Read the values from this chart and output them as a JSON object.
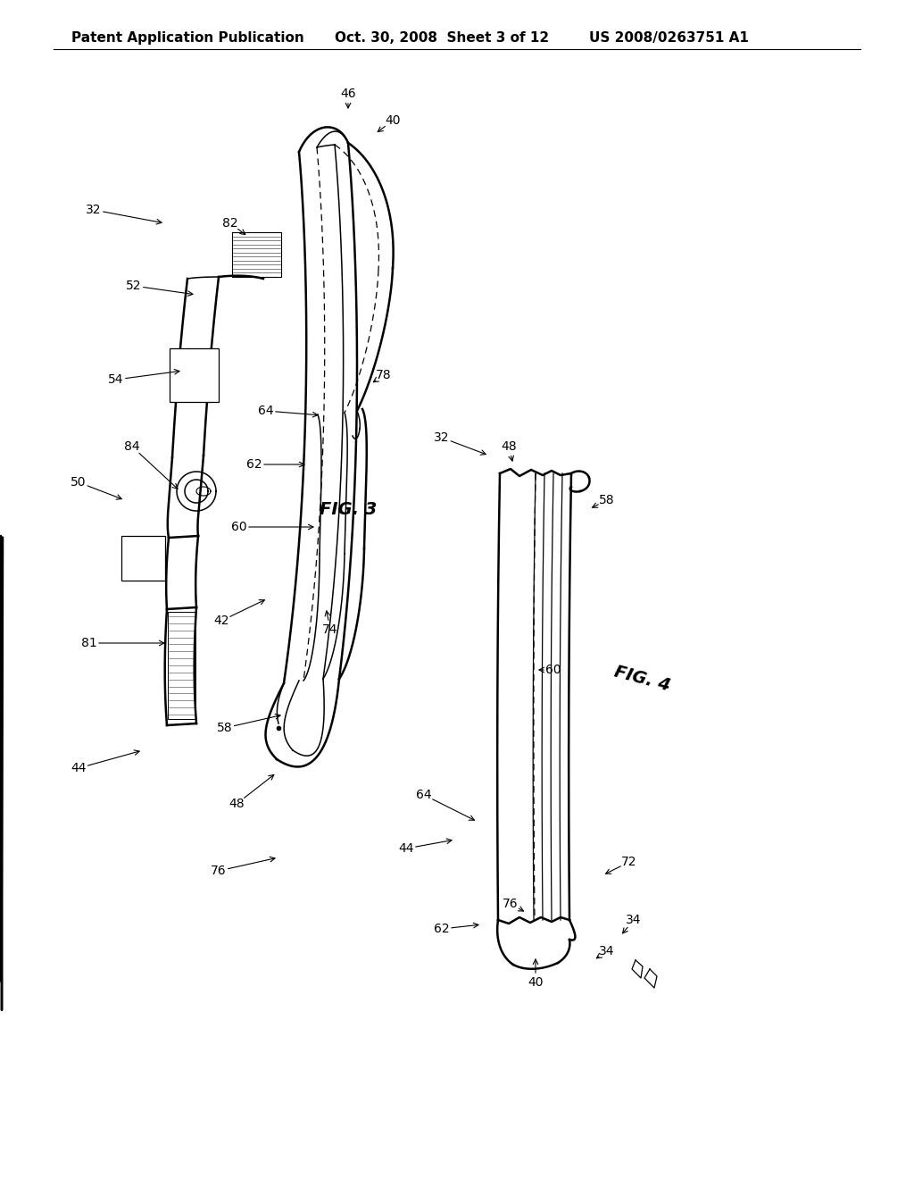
{
  "bg_color": "#ffffff",
  "line_color": "#000000",
  "header_text": "Patent Application Publication",
  "header_date": "Oct. 30, 2008  Sheet 3 of 12",
  "header_patent": "US 2008/0263751 A1",
  "fig3_label": "FIG. 3",
  "fig4_label": "FIG. 4",
  "font_size_header": 11,
  "font_size_fig": 13
}
